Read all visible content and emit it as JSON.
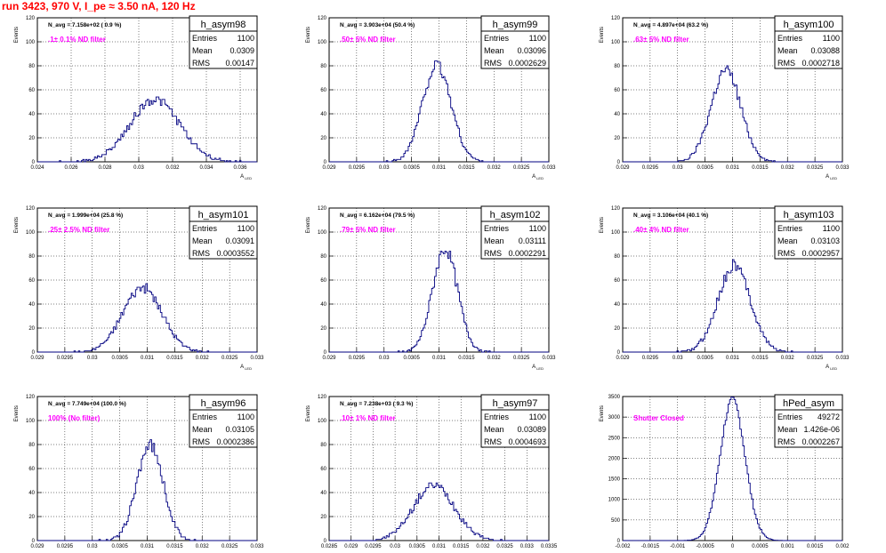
{
  "page": {
    "title": "run 3423,   970 V, I_pe ≈ 3.50 nA, 120 Hz"
  },
  "chart_data": [
    {
      "type": "histogram",
      "name": "h_asym98",
      "entries": "1100",
      "mean": "0.0309",
      "rms": "0.00147",
      "stat_labels": [
        "Entries",
        "Mean",
        "RMS"
      ],
      "navg": "N_avg = 7.158e+02 ( 0.9 %)",
      "filter": ".1± 0.1% ND filter",
      "ylabel": "Events",
      "xlabel": "A_{LED}",
      "xlim": [
        0.024,
        0.037
      ],
      "ylim": [
        0,
        120
      ],
      "xticks": [
        "0.024",
        "0.026",
        "0.028",
        "0.03",
        "0.032",
        "0.034",
        "0.036"
      ],
      "yticks": [
        "0",
        "20",
        "40",
        "60",
        "80",
        "100",
        "120"
      ],
      "mu": 0.03095,
      "sigma": 0.00147,
      "peak": 52,
      "nbins": 150,
      "seed": 98
    },
    {
      "type": "histogram",
      "name": "h_asym99",
      "entries": "1100",
      "mean": "0.03096",
      "rms": "0.0002629",
      "stat_labels": [
        "Entries",
        "Mean",
        "RMS"
      ],
      "navg": "N_avg = 3.903e+04 (50.4 %)",
      ".filter": "",
      "filter": ".50± 5% ND filter",
      "ylabel": "Events",
      "xlabel": "A_{LED}",
      "xlim": [
        0.029,
        0.033
      ],
      "ylim": [
        0,
        120
      ],
      "xticks": [
        "0.029",
        "0.0295",
        "0.03",
        "0.0305",
        "0.031",
        "0.0315",
        "0.032",
        "0.0325",
        "0.033"
      ],
      "yticks": [
        "0",
        "20",
        "40",
        "60",
        "80",
        "100",
        "120"
      ],
      "mu": 0.03096,
      "sigma": 0.000263,
      "peak": 80,
      "nbins": 150,
      "seed": 99
    },
    {
      "type": "histogram",
      "name": "h_asym100",
      "entries": "1100",
      "mean": "0.03088",
      "rms": "0.0002718",
      "stat_labels": [
        "Entries",
        "Mean",
        "RMS"
      ],
      "navg": "N_avg = 4.897e+04 (63.2 %)",
      "filter": ".63± 5% ND filter",
      "ylabel": "Events",
      "xlabel": "A_{LED}",
      "xlim": [
        0.029,
        0.033
      ],
      "ylim": [
        0,
        120
      ],
      "xticks": [
        "0.029",
        "0.0295",
        "0.03",
        "0.0305",
        "0.031",
        "0.0315",
        "0.032",
        "0.0325",
        "0.033"
      ],
      "yticks": [
        "0",
        "20",
        "40",
        "60",
        "80",
        "100",
        "120"
      ],
      "mu": 0.03088,
      "sigma": 0.000272,
      "peak": 76,
      "nbins": 150,
      "seed": 100
    },
    {
      "type": "histogram",
      "name": "h_asym101",
      "entries": "1100",
      "mean": "0.03091",
      "rms": "0.0003552",
      "stat_labels": [
        "Entries",
        "Mean",
        "RMS"
      ],
      "navg": "N_avg = 1.999e+04 (25.8 %)",
      "filter": ".25± 2.5% ND filter",
      "ylabel": "Events",
      "xlabel": "A_{LED}",
      "xlim": [
        0.029,
        0.033
      ],
      "ylim": [
        0,
        120
      ],
      "xticks": [
        "0.029",
        "0.0295",
        "0.03",
        "0.0305",
        "0.031",
        "0.0315",
        "0.032",
        "0.0325",
        "0.033"
      ],
      "yticks": [
        "0",
        "20",
        "40",
        "60",
        "80",
        "100",
        "120"
      ],
      "mu": 0.03091,
      "sigma": 0.000355,
      "peak": 54,
      "nbins": 150,
      "seed": 101
    },
    {
      "type": "histogram",
      "name": "h_asym102",
      "entries": "1100",
      "mean": "0.03111",
      "rms": "0.0002291",
      "stat_labels": [
        "Entries",
        "Mean",
        "RMS"
      ],
      "navg": "N_avg = 6.162e+04 (79.5 %)",
      "filter": ".79± 5% ND filter",
      "ylabel": "Events",
      "xlabel": "A_{LED}",
      "xlim": [
        0.029,
        0.033
      ],
      "ylim": [
        0,
        120
      ],
      "xticks": [
        "0.029",
        "0.0295",
        "0.03",
        "0.0305",
        "0.031",
        "0.0315",
        "0.032",
        "0.0325",
        "0.033"
      ],
      "yticks": [
        "0",
        "20",
        "40",
        "60",
        "80",
        "100",
        "120"
      ],
      "mu": 0.03111,
      "sigma": 0.000229,
      "peak": 86,
      "nbins": 150,
      "seed": 102
    },
    {
      "type": "histogram",
      "name": "h_asym103",
      "entries": "1100",
      "mean": "0.03103",
      "rms": "0.0002957",
      "stat_labels": [
        "Entries",
        "Mean",
        "RMS"
      ],
      "navg": "N_avg = 3.106e+04 (40.1 %)",
      "filter": ".40± 4% ND filter",
      "ylabel": "Events",
      "xlabel": "A_{LED}",
      "xlim": [
        0.029,
        0.033
      ],
      "ylim": [
        0,
        120
      ],
      "xticks": [
        "0.029",
        "0.0295",
        "0.03",
        "0.0305",
        "0.031",
        "0.0315",
        "0.032",
        "0.0325",
        "0.033"
      ],
      "yticks": [
        "0",
        "20",
        "40",
        "60",
        "80",
        "100",
        "120"
      ],
      "mu": 0.03103,
      "sigma": 0.000296,
      "peak": 72,
      "nbins": 150,
      "seed": 103
    },
    {
      "type": "histogram",
      "name": "h_asym96",
      "entries": "1100",
      "mean": "0.03105",
      "rms": "0.0002386",
      "stat_labels": [
        "Entries",
        "Mean",
        "RMS"
      ],
      "navg": "N_avg = 7.749e+04 (100.0 %)",
      "filter": "100% (No filter)",
      "ylabel": "Events",
      "xlabel": "A_{LED}",
      "xlim": [
        0.029,
        0.033
      ],
      "ylim": [
        0,
        120
      ],
      "xticks": [
        "0.029",
        "0.0295",
        "0.03",
        "0.0305",
        "0.031",
        "0.0315",
        "0.032",
        "0.0325",
        "0.033"
      ],
      "yticks": [
        "0",
        "20",
        "40",
        "60",
        "80",
        "100",
        "120"
      ],
      "mu": 0.03105,
      "sigma": 0.000239,
      "peak": 80,
      "nbins": 150,
      "seed": 96
    },
    {
      "type": "histogram",
      "name": "h_asym97",
      "entries": "1100",
      "mean": "0.03089",
      "rms": "0.0004693",
      "stat_labels": [
        "Entries",
        "Mean",
        "RMS"
      ],
      "navg": "N_avg = 7.238e+03 ( 9.3 %)",
      "filter": ".10± 1% ND filter",
      "ylabel": "Events",
      "xlabel": "A_{LED}",
      "xlim": [
        0.0285,
        0.0335
      ],
      "ylim": [
        0,
        120
      ],
      "xticks": [
        "0.0285",
        "0.029",
        "0.0295",
        "0.03",
        "0.0305",
        "0.031",
        "0.0315",
        "0.032",
        "0.0325",
        "0.033",
        "0.0335"
      ],
      "yticks": [
        "0",
        "20",
        "40",
        "60",
        "80",
        "100",
        "120"
      ],
      "mu": 0.03089,
      "sigma": 0.000469,
      "peak": 46,
      "nbins": 150,
      "seed": 97
    },
    {
      "type": "histogram",
      "name": "hPed_asym",
      "entries": "49272",
      "mean": "1.426e-06",
      "rms": "0.0002267",
      "stat_labels": [
        "Entries",
        "Mean",
        "RMS"
      ],
      "navg": "",
      "filter": "Shutter Closed",
      "ylabel": "Events",
      "xlabel": "A_{LED}",
      "xlim": [
        -0.002,
        0.002
      ],
      "ylim": [
        0,
        3500
      ],
      "xticks": [
        "-0.002",
        "-0.0015",
        "-0.001",
        "-0.0005",
        "0",
        "0.0005",
        "0.001",
        "0.0015",
        "0.002"
      ],
      "yticks": [
        "0",
        "500",
        "1000",
        "1500",
        "2000",
        "2500",
        "3000",
        "3500"
      ],
      "mu": 0.0,
      "sigma": 0.000227,
      "peak": 3420,
      "nbins": 150,
      "seed": 7
    }
  ]
}
